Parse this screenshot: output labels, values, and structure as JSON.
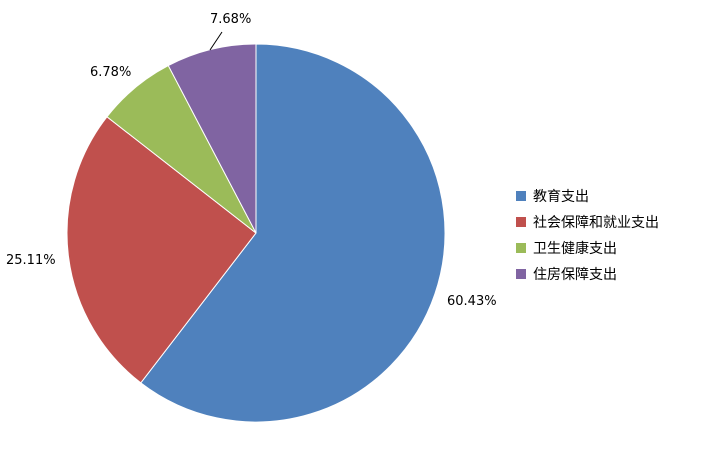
{
  "chart_data": {
    "type": "pie",
    "title": "",
    "start_angle_deg": 0,
    "direction": "clockwise",
    "legend_position": "right",
    "slices": [
      {
        "label": "教育支出",
        "value": 60.43,
        "display": "60.43%",
        "color": "#4F81BD"
      },
      {
        "label": "社会保障和就业支出",
        "value": 25.11,
        "display": "25.11%",
        "color": "#C0504D"
      },
      {
        "label": "卫生健康支出",
        "value": 6.78,
        "display": "6.78%",
        "color": "#9BBB59"
      },
      {
        "label": "住房保障支出",
        "value": 7.68,
        "display": "7.68%",
        "color": "#8064A2"
      }
    ]
  }
}
